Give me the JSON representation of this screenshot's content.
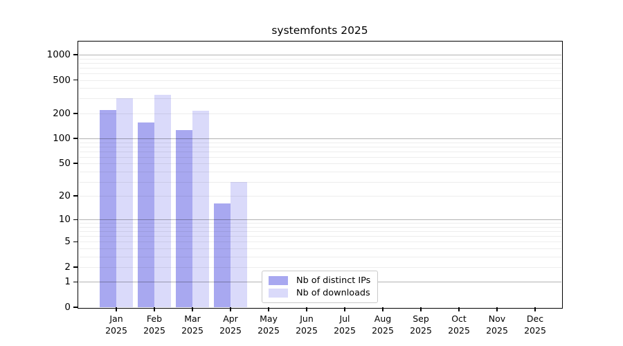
{
  "title": "systemfonts 2025",
  "chart_data": {
    "type": "bar",
    "title": "systemfonts 2025",
    "categories": [
      "Jan 2025",
      "Feb 2025",
      "Mar 2025",
      "Apr 2025",
      "May 2025",
      "Jun 2025",
      "Jul 2025",
      "Aug 2025",
      "Sep 2025",
      "Oct 2025",
      "Nov 2025",
      "Dec 2025"
    ],
    "series": [
      {
        "name": "Nb of distinct IPs",
        "color": "#a8a8f0",
        "values": [
          220,
          155,
          125,
          16,
          0,
          0,
          0,
          0,
          0,
          0,
          0,
          0
        ]
      },
      {
        "name": "Nb of downloads",
        "color": "#dadafa",
        "values": [
          305,
          330,
          215,
          30,
          0,
          0,
          0,
          0,
          0,
          0,
          0,
          0
        ]
      }
    ],
    "yscale": "log10(value+1)",
    "y_ticks": [
      0,
      1,
      2,
      5,
      10,
      20,
      50,
      100,
      200,
      500,
      1000
    ],
    "ylim": [
      0,
      1430
    ],
    "xlabel": "",
    "ylabel": "",
    "grid": "horizontal log gridlines (major at decades, minor at 2-9 multiples)",
    "legend_position": "inside, bottom center",
    "legend_labels": [
      "Nb of distinct IPs",
      "Nb of downloads"
    ]
  },
  "colors": {
    "bar_distinct_ips": "#a8a8f0",
    "bar_downloads": "#dadafa",
    "axis": "#000000",
    "grid_major": "rgba(0,0,0,0.30)",
    "grid_minor": "rgba(0,0,0,0.07)",
    "legend_border": "#c9c9c9",
    "background": "#ffffff"
  }
}
